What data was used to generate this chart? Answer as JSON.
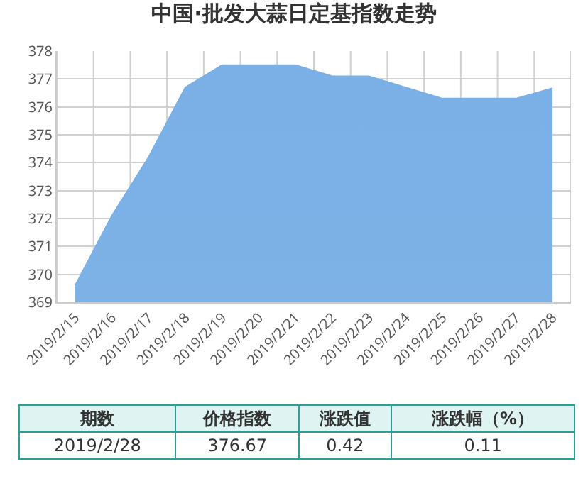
{
  "chart_data": {
    "type": "area",
    "title": "中国·批发大蒜日定基指数走势",
    "categories": [
      "2019/2/15",
      "2019/2/16",
      "2019/2/17",
      "2019/2/18",
      "2019/2/19",
      "2019/2/20",
      "2019/2/21",
      "2019/2/22",
      "2019/2/23",
      "2019/2/24",
      "2019/2/25",
      "2019/2/26",
      "2019/2/27",
      "2019/2/28"
    ],
    "series": [
      {
        "color": "#7ab0e6",
        "values": [
          369.6,
          372.1,
          374.2,
          376.7,
          377.5,
          377.5,
          377.5,
          377.1,
          377.1,
          376.7,
          376.3,
          376.3,
          376.3,
          376.67
        ]
      }
    ],
    "ylim": [
      369,
      378
    ],
    "yticks": [
      369,
      370,
      371,
      372,
      373,
      374,
      375,
      376,
      377,
      378
    ],
    "grid": true,
    "legend": false,
    "annotations": [
      "期数",
      "价格指数",
      "涨跌值",
      "涨跌幅（%）",
      "2019/2/28",
      "376.67",
      "0.42",
      "0.11"
    ]
  }
}
